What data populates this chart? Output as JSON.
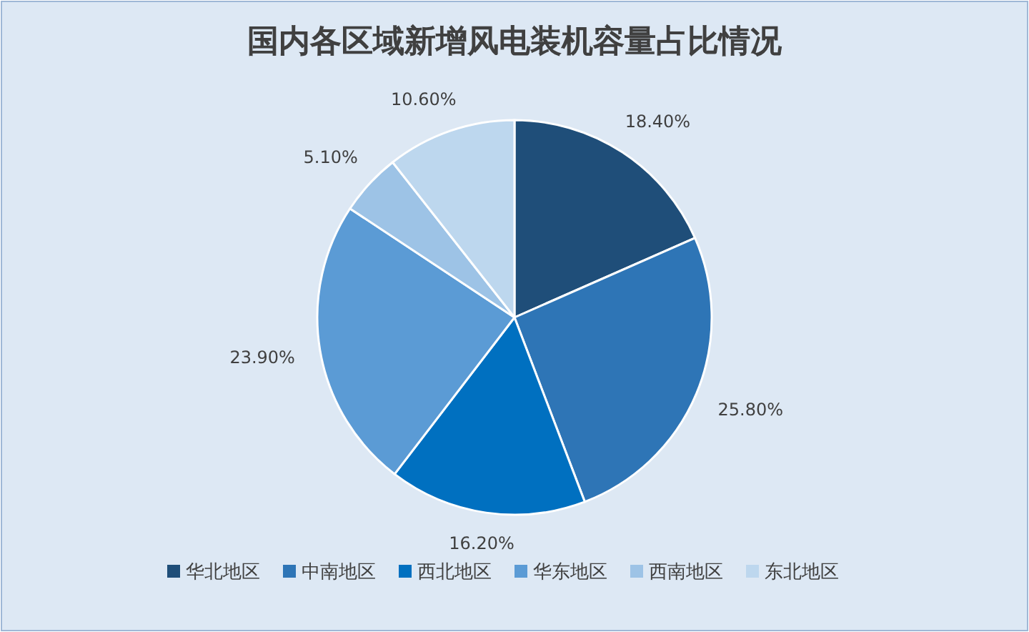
{
  "chart_data": {
    "type": "pie",
    "title": "国内各区域新增风电装机容量占比情况",
    "categories": [
      "华北地区",
      "中南地区",
      "西北地区",
      "华东地区",
      "西南地区",
      "东北地区"
    ],
    "values": [
      18.4,
      25.8,
      16.2,
      23.9,
      5.1,
      10.6
    ],
    "value_labels": [
      "18.40%",
      "25.80%",
      "16.20%",
      "23.90%",
      "5.10%",
      "10.60%"
    ],
    "colors": [
      "#1f4e79",
      "#2e75b6",
      "#0070c0",
      "#5b9bd5",
      "#9dc3e6",
      "#bdd7ee"
    ],
    "legend": "bottom"
  }
}
